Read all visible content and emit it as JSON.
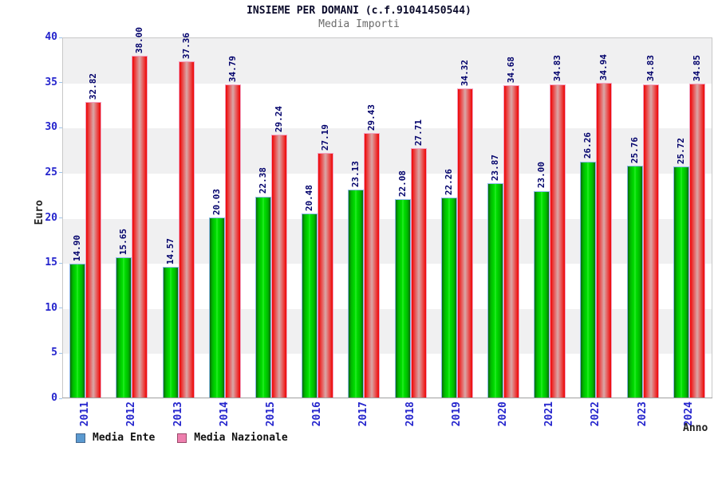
{
  "title": "INSIEME PER DOMANI (c.f.91041450544)",
  "subtitle": "Media Importi",
  "chart_data": {
    "type": "bar",
    "categories": [
      "2011",
      "2012",
      "2013",
      "2014",
      "2015",
      "2016",
      "2017",
      "2018",
      "2019",
      "2020",
      "2021",
      "2022",
      "2023",
      "2024"
    ],
    "series": [
      {
        "name": "Media Ente",
        "color_key": "green",
        "values": [
          14.9,
          15.65,
          14.57,
          20.03,
          22.38,
          20.48,
          23.13,
          22.08,
          22.26,
          23.87,
          23.0,
          26.26,
          25.76,
          25.72
        ]
      },
      {
        "name": "Media Nazionale",
        "color_key": "red",
        "values": [
          32.82,
          38.0,
          37.36,
          34.79,
          29.24,
          27.19,
          29.43,
          27.71,
          34.32,
          34.68,
          34.83,
          34.94,
          34.83,
          34.85
        ]
      }
    ],
    "xlabel": "Anno",
    "ylabel": "Euro",
    "ylim": [
      0,
      40
    ],
    "yticks": [
      0,
      5,
      10,
      15,
      20,
      25,
      30,
      35,
      40
    ],
    "grid_bands": true,
    "legend_position": "bottom-left",
    "value_label_decimals": 2
  },
  "colors": {
    "bar_green_edge": "#0a6a0a",
    "bar_green_center": "#00e400",
    "bar_green_border": "#8cb8e8",
    "bar_red_edge": "#ee0404",
    "bar_red_center": "#d8acac",
    "bar_red_border": "#f2a0c0",
    "value_label": "#00006b",
    "axis_tick_label": "#2525cd",
    "band_gray": "#f0f0f1",
    "legend_swatch_blue": "#5b9ad0",
    "legend_swatch_pink": "#ee7fae",
    "title_color": "#0a0a2a",
    "subtitle_color": "#6b6b6b"
  }
}
